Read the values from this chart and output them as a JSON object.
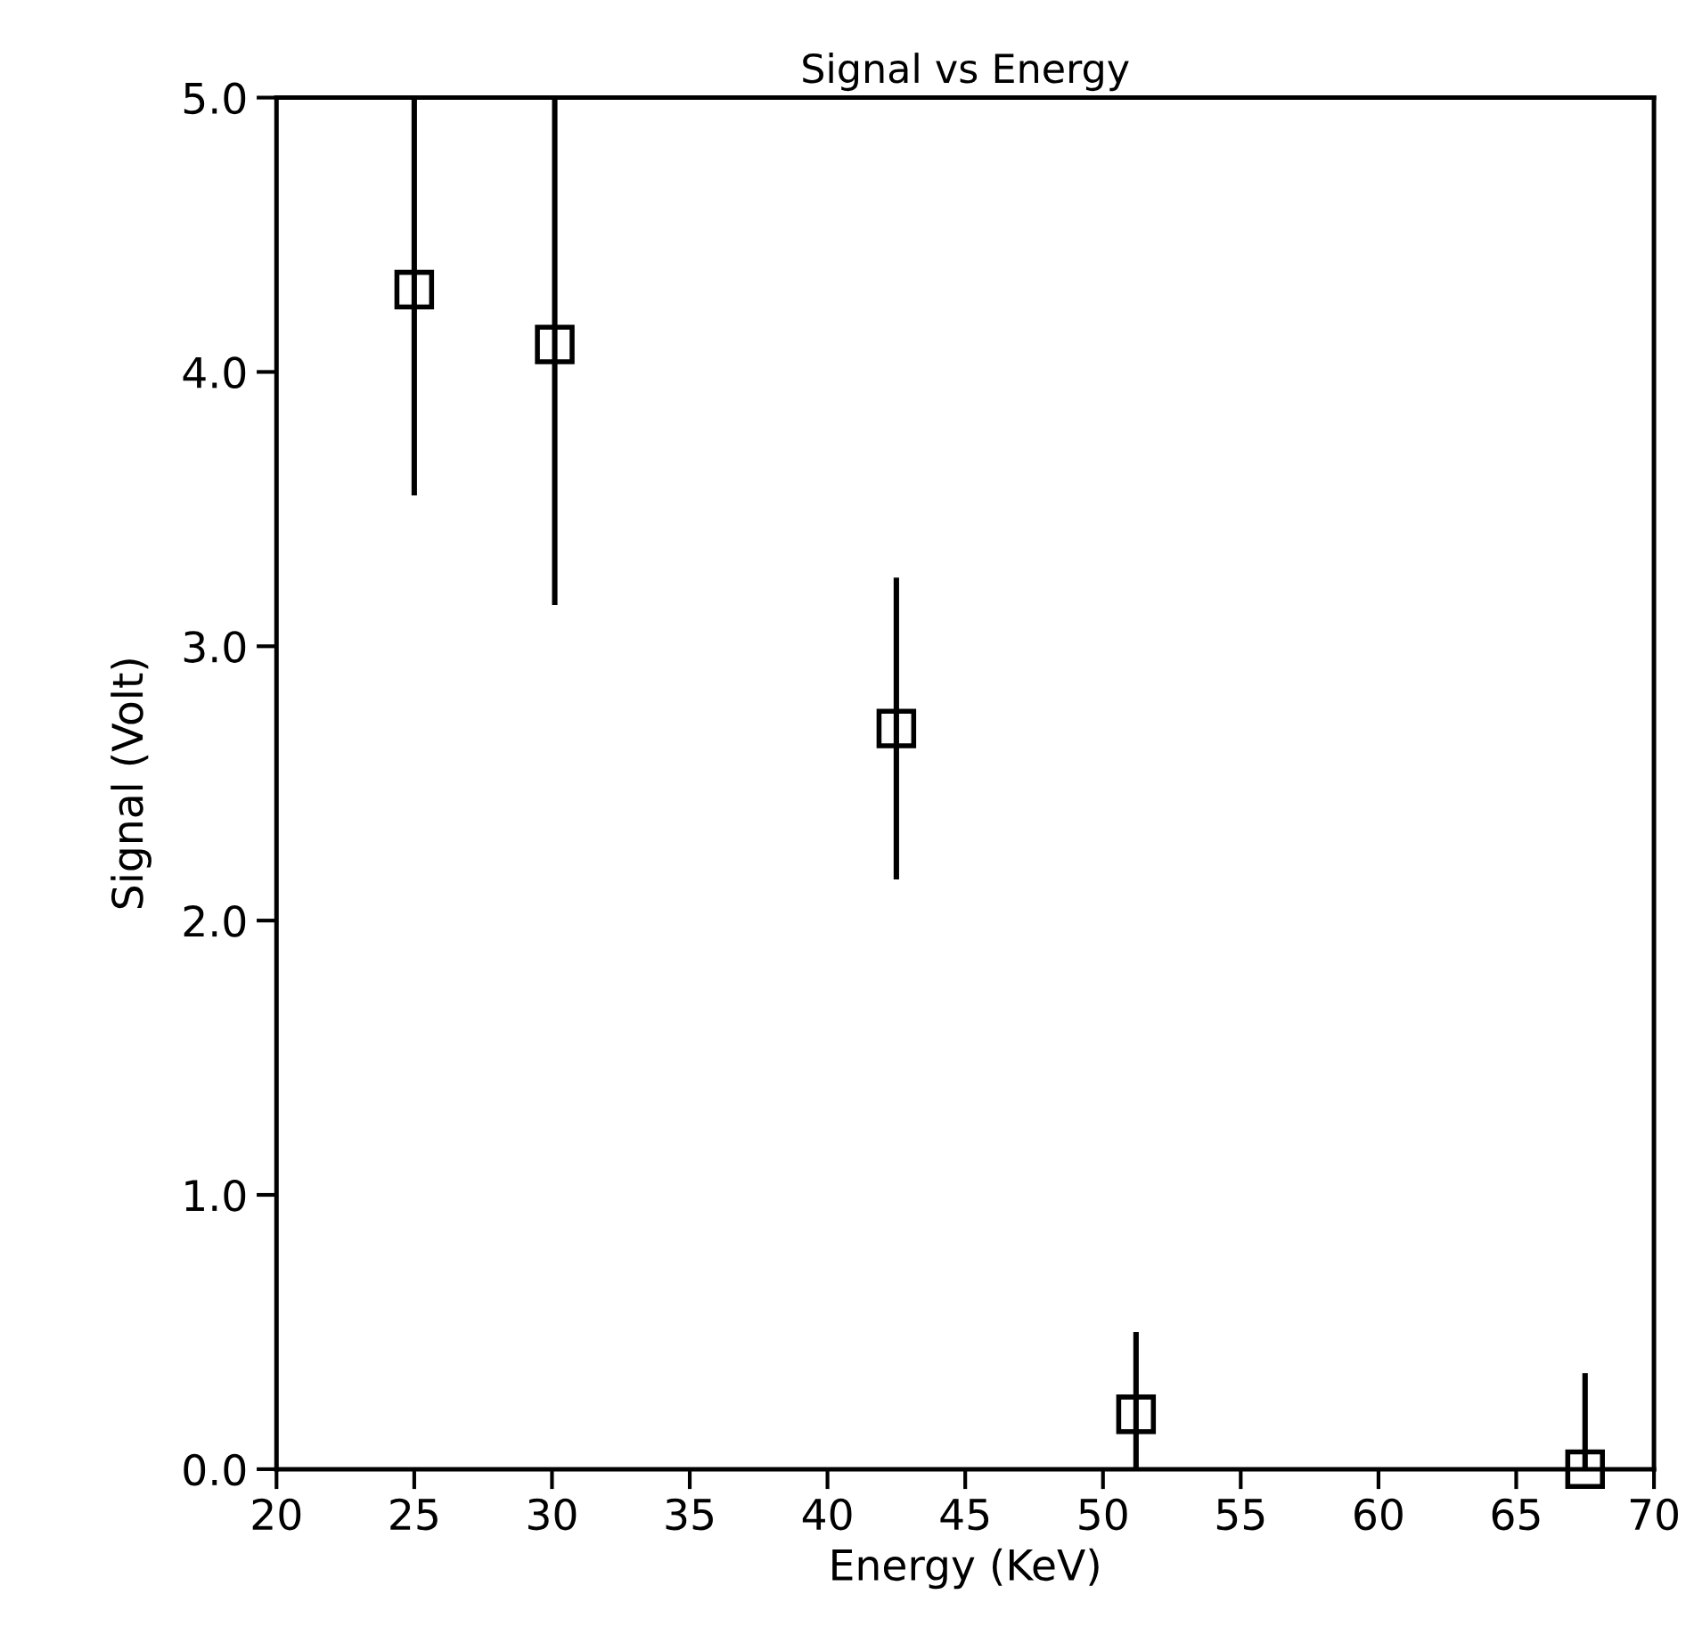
{
  "chart_data": {
    "type": "scatter",
    "title": "Signal vs Energy",
    "xlabel": "Energy (KeV)",
    "ylabel": "Signal (Volt)",
    "x": [
      25.0,
      30.1,
      42.5,
      51.2,
      67.5
    ],
    "series": [
      {
        "color": "#000000",
        "values": [
          4.3,
          4.1,
          2.7,
          0.2,
          0.0
        ],
        "errors": [
          [
            3.55,
            5.0
          ],
          [
            3.15,
            5.0
          ],
          [
            2.15,
            3.25
          ],
          [
            0.0,
            0.5
          ],
          [
            0.0,
            0.35
          ]
        ]
      }
    ],
    "xlim": [
      20,
      70
    ],
    "xticks": [
      20,
      25,
      30,
      35,
      40,
      45,
      50,
      55,
      60,
      65,
      70
    ],
    "ylim": [
      0,
      5
    ],
    "yticks": [
      {
        "value": 0,
        "label": "0.0"
      },
      {
        "value": 1,
        "label": "1.0"
      },
      {
        "value": 2,
        "label": "2.0"
      },
      {
        "value": 3,
        "label": "3.0"
      },
      {
        "value": 4,
        "label": "4.0"
      },
      {
        "value": 5,
        "label": "5.0"
      }
    ],
    "marker": "square",
    "grid": false,
    "legend": false
  }
}
